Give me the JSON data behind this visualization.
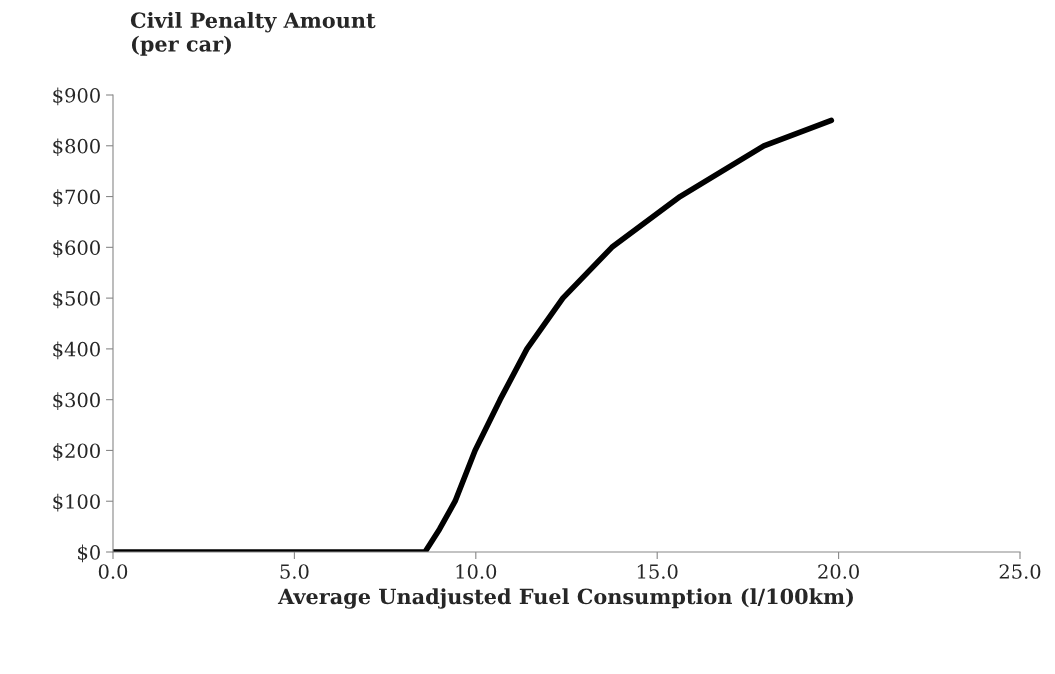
{
  "chart_data": {
    "type": "line",
    "ylabel": "Civil Penalty Amount\n(per car)",
    "xlabel": "Average Unadjusted Fuel Consumption (l/100km)",
    "series": [
      {
        "color": "#000000",
        "x": [
          0.0,
          2.0,
          4.0,
          6.0,
          8.0,
          8.6,
          9.0,
          9.43,
          9.98,
          10.67,
          11.41,
          12.4,
          13.75,
          15.63,
          17.94,
          19.8
        ],
        "values": [
          0,
          0,
          0,
          0,
          0,
          0,
          45,
          100,
          200,
          300,
          400,
          500,
          600,
          700,
          800,
          850
        ]
      }
    ],
    "xlim": [
      0,
      25
    ],
    "xticks": [
      {
        "value": 0,
        "label": "0.0"
      },
      {
        "value": 5,
        "label": "5.0"
      },
      {
        "value": 10,
        "label": "10.0"
      },
      {
        "value": 15,
        "label": "15.0"
      },
      {
        "value": 20,
        "label": "20.0"
      },
      {
        "value": 25,
        "label": "25.0"
      }
    ],
    "ylim": [
      0,
      900
    ],
    "yticks": [
      {
        "value": 0,
        "label": "$0"
      },
      {
        "value": 100,
        "label": "$100"
      },
      {
        "value": 200,
        "label": "$200"
      },
      {
        "value": 300,
        "label": "$300"
      },
      {
        "value": 400,
        "label": "$400"
      },
      {
        "value": 500,
        "label": "$500"
      },
      {
        "value": 600,
        "label": "$600"
      },
      {
        "value": 700,
        "label": "$700"
      },
      {
        "value": 800,
        "label": "$800"
      },
      {
        "value": 900,
        "label": "$900"
      }
    ],
    "grid": false,
    "legend": false,
    "marker": "none",
    "line_style": "solid"
  }
}
